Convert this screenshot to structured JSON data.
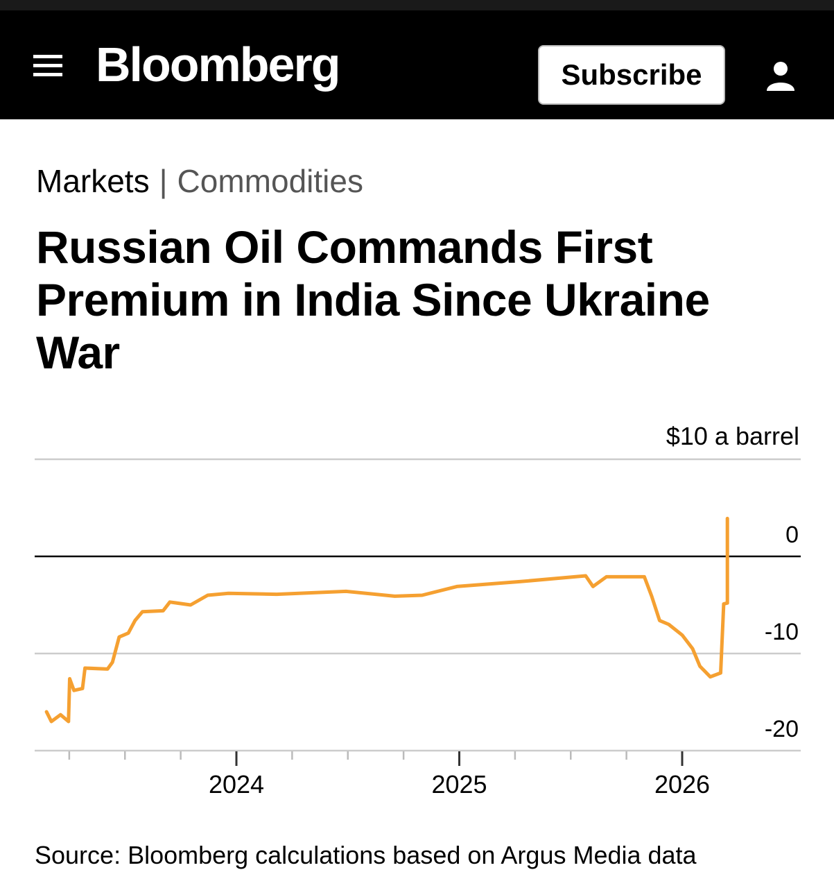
{
  "header": {
    "logo": "Bloomberg",
    "subscribe_label": "Subscribe",
    "menu_icon": "hamburger-menu-icon",
    "user_icon": "user-icon"
  },
  "breadcrumb": {
    "section": "Markets",
    "separator": "|",
    "subsection": "Commodities"
  },
  "article": {
    "title": "Russian Oil Commands First Premium in India Since Ukraine War"
  },
  "source": "Source: Bloomberg calculations based on Argus Media data",
  "chart_data": {
    "type": "line",
    "title": "",
    "ylabel": "$10 a barrel",
    "xlabel": "",
    "ylim": [
      -20,
      10
    ],
    "xlim": [
      "2023-01-20",
      "2026-06-30"
    ],
    "yticks": [
      0,
      -10,
      -20
    ],
    "ytick_labels": [
      "0",
      "-10",
      "-20"
    ],
    "xtick_labels": [
      "2024",
      "2025",
      "2026"
    ],
    "grid": true,
    "line_color": "#f5a031",
    "series": [
      {
        "x": [
          "2023-02-24",
          "2023-03-04",
          "2023-03-19",
          "2023-04-01",
          "2023-04-03",
          "2023-04-10",
          "2023-04-24",
          "2023-04-28",
          "2023-06-04",
          "2023-06-12",
          "2023-06-23",
          "2023-07-08",
          "2023-07-19",
          "2023-07-31",
          "2023-09-03",
          "2023-09-14",
          "2023-10-18",
          "2023-11-15",
          "2023-12-19",
          "2024-03-07",
          "2024-06-29",
          "2024-09-17",
          "2024-11-01",
          "2024-12-28",
          "2025-04-10",
          "2025-07-27",
          "2025-08-08",
          "2025-08-30",
          "2025-10-31",
          "2025-11-12",
          "2025-11-25",
          "2025-12-10",
          "2026-01-01",
          "2026-01-18",
          "2026-01-30",
          "2026-02-16",
          "2026-03-05",
          "2026-03-10",
          "2026-03-16",
          "2026-03-16"
        ],
        "values": [
          -16.0,
          -17.0,
          -16.3,
          -17.0,
          -12.6,
          -13.8,
          -13.6,
          -11.5,
          -11.6,
          -10.9,
          -8.3,
          -7.9,
          -6.6,
          -5.7,
          -5.6,
          -4.7,
          -5.0,
          -4.0,
          -3.8,
          -3.9,
          -3.6,
          -4.1,
          -4.0,
          -3.1,
          -2.6,
          -2.0,
          -3.1,
          -2.1,
          -2.1,
          -4.1,
          -6.6,
          -7.0,
          -8.1,
          -9.5,
          -11.3,
          -12.4,
          -12.0,
          -4.9,
          -4.8,
          3.9
        ]
      }
    ]
  }
}
